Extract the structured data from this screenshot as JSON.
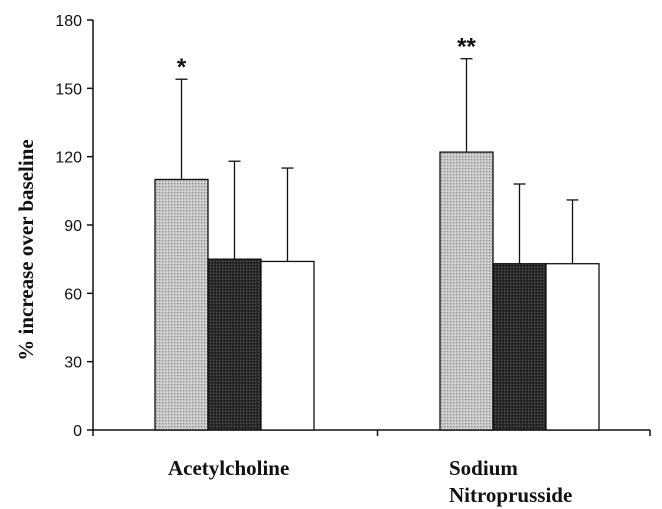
{
  "chart_data": {
    "type": "bar",
    "ylabel": "% increase over baseline",
    "ylim": [
      0,
      180
    ],
    "yticks": [
      0,
      30,
      60,
      90,
      120,
      150,
      180
    ],
    "categories": [
      {
        "lines": [
          "Acetylcholine"
        ],
        "annotation": "*"
      },
      {
        "lines": [
          "Sodium",
          "Nitroprusside"
        ],
        "annotation": "**"
      }
    ],
    "series": [
      {
        "fill": "#c4c4c4",
        "pattern": "stipple",
        "values": [
          110,
          122
        ],
        "error": [
          44,
          41
        ]
      },
      {
        "fill": "#2b2b2b",
        "pattern": "stipple",
        "values": [
          75,
          73
        ],
        "error": [
          43,
          35
        ]
      },
      {
        "fill": "#ffffff",
        "pattern": "none",
        "values": [
          74,
          73
        ],
        "error": [
          41,
          28
        ]
      }
    ],
    "legend": "none",
    "grid": false
  }
}
